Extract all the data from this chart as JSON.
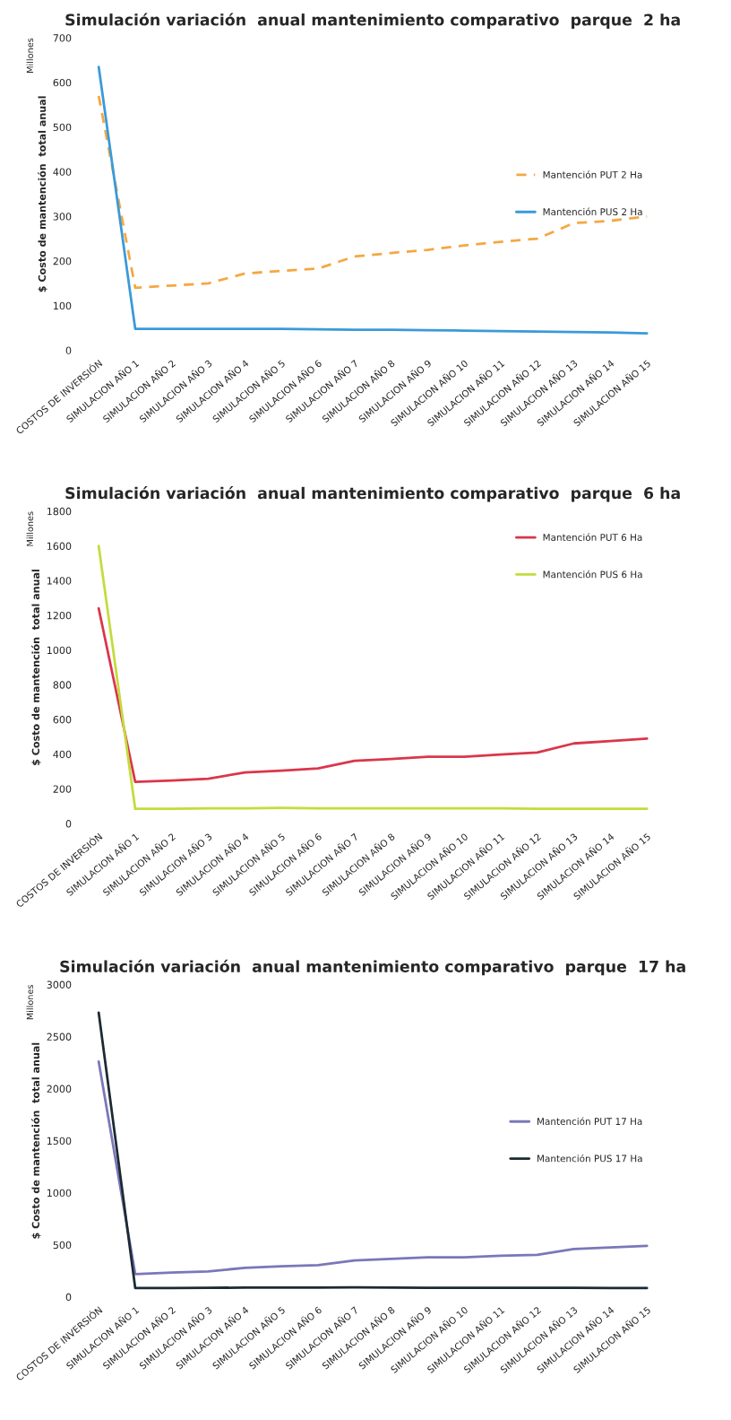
{
  "chart_data": [
    {
      "type": "line",
      "title": "Simulación variación  anual mantenimiento comparativo  parque  2 ha",
      "ylabel": "$ Costo de mantención  total anual",
      "annotations": [
        "Millones"
      ],
      "categories": [
        "COSTOS DE INVERSIÓN",
        "SIMULACION AÑO 1",
        "SIMULACION AÑO 2",
        "SIMULACION AÑO 3",
        "SIMULACION AÑO 4",
        "SIMULACION AÑO 5",
        "SIMULACION AÑO 6",
        "SIMULACION AÑO 7",
        "SIMULACION AÑO 8",
        "SIMULACION AÑO 9",
        "SIMULACION AÑO 10",
        "SIMULACION AÑO 11",
        "SIMULACION AÑO 12",
        "SIMULACION AÑO 13",
        "SIMULACION AÑO 14",
        "SIMULACION AÑO 15"
      ],
      "series": [
        {
          "name": "Mantención PUT 2 Ha",
          "color": "#f5a742",
          "line_style": "dashed",
          "values": [
            570,
            140,
            145,
            150,
            172,
            178,
            183,
            210,
            218,
            225,
            235,
            243,
            250,
            285,
            290,
            300
          ]
        },
        {
          "name": "Mantención PUS 2 Ha",
          "color": "#3a9ad9",
          "line_style": "solid",
          "values": [
            635,
            48,
            48,
            48,
            48,
            48,
            47,
            46,
            46,
            45,
            44,
            43,
            42,
            41,
            40,
            38
          ]
        }
      ],
      "ylim": [
        0,
        700
      ],
      "yticks": [
        0,
        100,
        200,
        300,
        400,
        500,
        600,
        700
      ],
      "grid": false,
      "legend": "right"
    },
    {
      "type": "line",
      "title": "Simulación variación  anual mantenimiento comparativo  parque  6 ha",
      "ylabel": "$ Costo de mantención  total anual",
      "annotations": [
        "Millones"
      ],
      "categories": [
        "COSTOS DE INVERSIÓN",
        "SIMULACION AÑO 1",
        "SIMULACION AÑO 2",
        "SIMULACION AÑO 3",
        "SIMULACION AÑO 4",
        "SIMULACION AÑO 5",
        "SIMULACION AÑO 6",
        "SIMULACION AÑO 7",
        "SIMULACION AÑO 8",
        "SIMULACION AÑO 9",
        "SIMULACION AÑO 10",
        "SIMULACION AÑO 11",
        "SIMULACION AÑO 12",
        "SIMULACION AÑO 13",
        "SIMULACION AÑO 14",
        "SIMULACION AÑO 15"
      ],
      "series": [
        {
          "name": "Mantención PUT 6 Ha",
          "color": "#d9374b",
          "values": [
            1240,
            240,
            248,
            258,
            295,
            305,
            318,
            362,
            372,
            385,
            385,
            398,
            410,
            462,
            475,
            490
          ]
        },
        {
          "name": "Mantención PUS 6 Ha",
          "color": "#c3dc3c",
          "values": [
            1600,
            85,
            85,
            88,
            88,
            90,
            88,
            88,
            88,
            88,
            88,
            88,
            85,
            85,
            85,
            85
          ]
        }
      ],
      "ylim": [
        0,
        1800
      ],
      "yticks": [
        0,
        200,
        400,
        600,
        800,
        1000,
        1200,
        1400,
        1600,
        1800
      ],
      "grid": false,
      "legend": "upper right"
    },
    {
      "type": "line",
      "title": "Simulación variación  anual mantenimiento comparativo  parque  17 ha",
      "ylabel": "$ Costo de mantención  total anual",
      "annotations": [
        "Millones"
      ],
      "categories": [
        "COSTOS DE INVERSIÓN",
        "SIMULACION AÑO 1",
        "SIMULACION AÑO 2",
        "SIMULACION AÑO 3",
        "SIMULACION AÑO 4",
        "SIMULACION AÑO 5",
        "SIMULACION AÑO 6",
        "SIMULACION AÑO 7",
        "SIMULACION AÑO 8",
        "SIMULACION AÑO 9",
        "SIMULACION AÑO 10",
        "SIMULACION AÑO 11",
        "SIMULACION AÑO 12",
        "SIMULACION AÑO 13",
        "SIMULACION AÑO 14",
        "SIMULACION AÑO 15"
      ],
      "series": [
        {
          "name": "Mantención PUT 17 Ha",
          "color": "#7a78b8",
          "values": [
            2260,
            220,
            235,
            245,
            280,
            295,
            305,
            350,
            365,
            380,
            380,
            395,
            405,
            460,
            475,
            490
          ]
        },
        {
          "name": "Mantención PUS 17 Ha",
          "color": "#1c2a33",
          "values": [
            2730,
            85,
            85,
            87,
            90,
            90,
            90,
            92,
            90,
            88,
            88,
            88,
            87,
            87,
            85,
            85
          ]
        }
      ],
      "ylim": [
        0,
        3000
      ],
      "yticks": [
        0,
        500,
        1000,
        1500,
        2000,
        2500,
        3000
      ],
      "grid": false,
      "legend": "right"
    }
  ]
}
